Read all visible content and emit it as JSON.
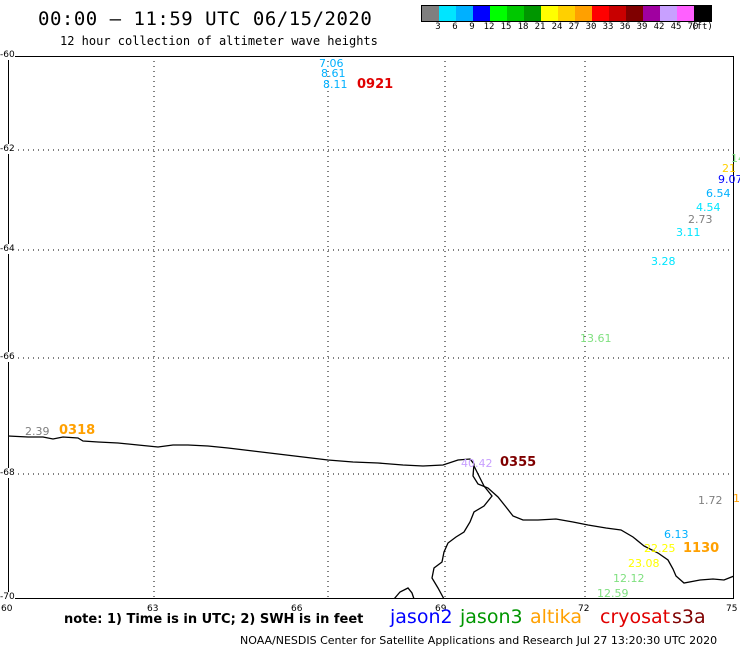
{
  "header": {
    "title": "00:00 – 11:59 UTC 06/15/2020",
    "subtitle": "12 hour collection of altimeter wave heights"
  },
  "scale": {
    "colors": [
      "#7f7f7f",
      "#00e5ff",
      "#00b0ff",
      "#0000ff",
      "#00ff00",
      "#00c800",
      "#009600",
      "#ffff00",
      "#ffd000",
      "#ffa000",
      "#ff0000",
      "#c80000",
      "#7f0000",
      "#a000a0",
      "#c8a0ff",
      "#ff60ff",
      "#000000"
    ],
    "labels": [
      "3",
      "6",
      "9",
      "12",
      "15",
      "18",
      "21",
      "24",
      "27",
      "30",
      "33",
      "36",
      "39",
      "42",
      "45",
      "70",
      "(ft)"
    ]
  },
  "axes": {
    "y_ticks": [
      "-60",
      "-62",
      "-64",
      "-66",
      "-68",
      "-70"
    ],
    "x_ticks": [
      "60",
      "63",
      "66",
      "69",
      "72",
      "75"
    ]
  },
  "observations": [
    {
      "text": "7.06",
      "color": "#00b0ff"
    },
    {
      "text": "8.61",
      "color": "#00b0ff"
    },
    {
      "text": "8.11",
      "color": "#00b0ff"
    },
    {
      "text": "14",
      "color": "#7fe07f"
    },
    {
      "text": "21",
      "color": "#ffd000"
    },
    {
      "text": "9.07",
      "color": "#0000ff"
    },
    {
      "text": "6.54",
      "color": "#00b0ff"
    },
    {
      "text": "4.54",
      "color": "#00e5ff"
    },
    {
      "text": "2.73",
      "color": "#7f7f7f"
    },
    {
      "text": "3.11",
      "color": "#00e5ff"
    },
    {
      "text": "3.28",
      "color": "#00e5ff"
    },
    {
      "text": "13.61",
      "color": "#7fe07f"
    },
    {
      "text": "2.39",
      "color": "#7f7f7f"
    },
    {
      "text": "40.42",
      "color": "#c8a0ff"
    },
    {
      "text": "1.72",
      "color": "#7f7f7f"
    },
    {
      "text": "1",
      "color": "#ffa000"
    },
    {
      "text": "6.13",
      "color": "#00b0ff"
    },
    {
      "text": "22.25",
      "color": "#ffff00"
    },
    {
      "text": "23.08",
      "color": "#ffff00"
    },
    {
      "text": "12.12",
      "color": "#7fe07f"
    },
    {
      "text": "12.59",
      "color": "#7fe07f"
    }
  ],
  "pass_times": [
    {
      "text": "0921",
      "color": "#e00000"
    },
    {
      "text": "0318",
      "color": "#ffa000"
    },
    {
      "text": "0355",
      "color": "#7f0000"
    },
    {
      "text": "1130",
      "color": "#ffa000"
    }
  ],
  "footer": {
    "note": "note: 1) Time is in UTC; 2) SWH is in feet",
    "satellites": [
      {
        "name": "jason2",
        "color": "#0000ff"
      },
      {
        "name": "jason3",
        "color": "#009600"
      },
      {
        "name": "altika",
        "color": "#ffa000"
      },
      {
        "name": "cryosat",
        "color": "#e00000"
      },
      {
        "name": "s3a",
        "color": "#7f0000"
      }
    ],
    "credit": "NOAA/NESDIS Center for Satellite Applications and Research    Jul 27 13:20:30 UTC 2020"
  }
}
